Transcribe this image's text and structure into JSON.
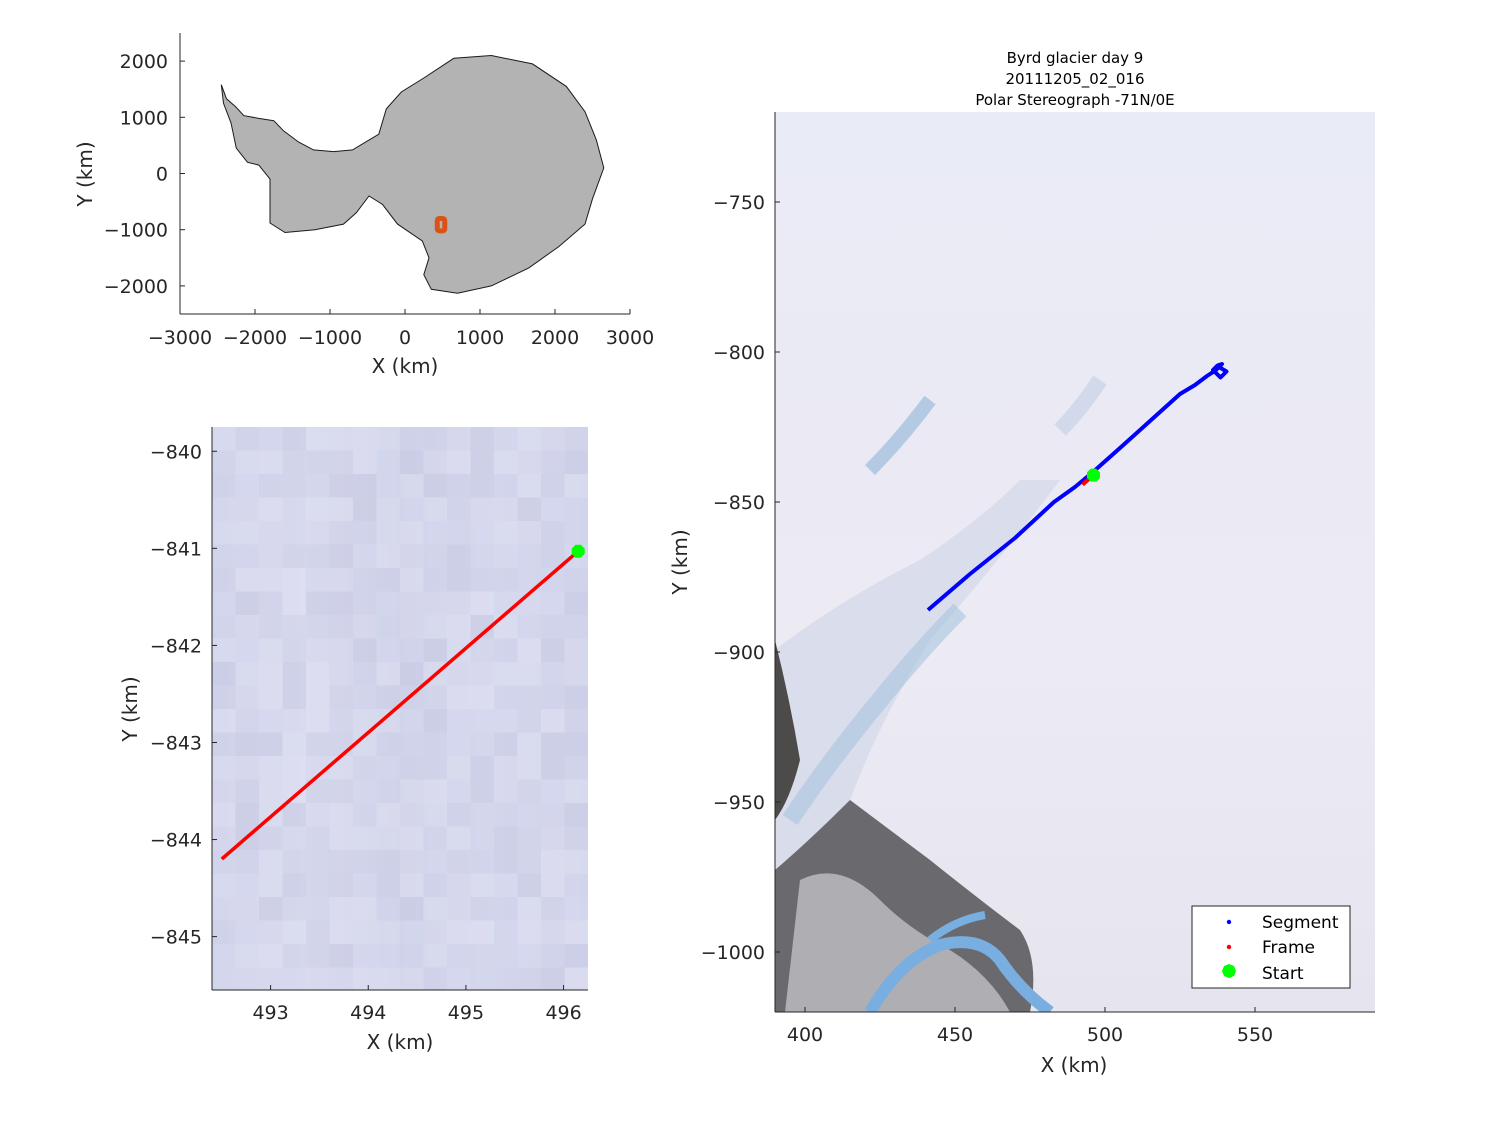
{
  "chart_data": [
    {
      "id": "overview",
      "type": "map",
      "title": "",
      "xlabel": "X (km)",
      "ylabel": "Y (km)",
      "xlim": [
        -3000,
        3000
      ],
      "ylim": [
        -2500,
        2500
      ],
      "xticks": [
        -3000,
        -2000,
        -1000,
        0,
        1000,
        2000,
        3000
      ],
      "yticks": [
        -2000,
        -1000,
        0,
        1000,
        2000
      ],
      "xtick_labels": [
        "−3000",
        "−2000",
        "−1000",
        "0",
        "1000",
        "2000",
        "3000"
      ],
      "ytick_labels": [
        "−2000",
        "−1000",
        "0",
        "1000",
        "2000"
      ],
      "land_color": "#b3b3b3",
      "box_color": "#d95319",
      "box": {
        "x": [
          430,
          530
        ],
        "y": [
          -1020,
          -800
        ]
      },
      "outline": [
        [
          -2450,
          1580
        ],
        [
          -2380,
          1330
        ],
        [
          -2260,
          1190
        ],
        [
          -2150,
          1030
        ],
        [
          -1950,
          980
        ],
        [
          -1750,
          940
        ],
        [
          -1620,
          760
        ],
        [
          -1420,
          560
        ],
        [
          -1220,
          420
        ],
        [
          -950,
          390
        ],
        [
          -700,
          420
        ],
        [
          -350,
          700
        ],
        [
          -250,
          1150
        ],
        [
          -50,
          1450
        ],
        [
          250,
          1700
        ],
        [
          650,
          2050
        ],
        [
          1150,
          2100
        ],
        [
          1700,
          1950
        ],
        [
          2150,
          1550
        ],
        [
          2400,
          1100
        ],
        [
          2550,
          600
        ],
        [
          2650,
          100
        ],
        [
          2500,
          -450
        ],
        [
          2400,
          -900
        ],
        [
          2050,
          -1300
        ],
        [
          1650,
          -1680
        ],
        [
          1150,
          -2000
        ],
        [
          700,
          -2130
        ],
        [
          350,
          -2060
        ],
        [
          250,
          -1800
        ],
        [
          320,
          -1500
        ],
        [
          230,
          -1200
        ],
        [
          -100,
          -900
        ],
        [
          -300,
          -550
        ],
        [
          -480,
          -400
        ],
        [
          -650,
          -700
        ],
        [
          -820,
          -900
        ],
        [
          -1200,
          -1000
        ],
        [
          -1600,
          -1050
        ],
        [
          -1800,
          -880
        ],
        [
          -1800,
          -500
        ],
        [
          -1800,
          -100
        ],
        [
          -1950,
          150
        ],
        [
          -2100,
          200
        ],
        [
          -2250,
          450
        ],
        [
          -2320,
          900
        ],
        [
          -2420,
          1250
        ]
      ]
    },
    {
      "id": "frame",
      "type": "line",
      "title": "",
      "xlabel": "X (km)",
      "ylabel": "Y (km)",
      "xlim": [
        492.4,
        496.25
      ],
      "ylim": [
        -845.55,
        -839.75
      ],
      "xticks": [
        493,
        494,
        495,
        496
      ],
      "yticks": [
        -840,
        -841,
        -842,
        -843,
        -844,
        -845
      ],
      "xtick_labels": [
        "493",
        "494",
        "495",
        "496"
      ],
      "ytick_labels": [
        "−840",
        "−841",
        "−842",
        "−843",
        "−844",
        "−845"
      ],
      "series": [
        {
          "color": "#ff0000",
          "x": [
            492.5,
            496.15
          ],
          "y": [
            -844.2,
            -841.03
          ]
        }
      ],
      "start_marker": {
        "x": 496.15,
        "y": -841.03,
        "color": "#00ff00"
      }
    },
    {
      "id": "segment",
      "type": "line",
      "title": [
        "Byrd glacier day 9",
        "20111205_02_016",
        "Polar Stereograph -71N/0E"
      ],
      "xlabel": "X (km)",
      "ylabel": "Y (km)",
      "xlim": [
        390,
        590
      ],
      "ylim": [
        -1020,
        -720
      ],
      "xticks": [
        400,
        450,
        500,
        550
      ],
      "yticks": [
        -750,
        -800,
        -850,
        -900,
        -950,
        -1000
      ],
      "xtick_labels": [
        "400",
        "450",
        "500",
        "550"
      ],
      "ytick_labels": [
        "−750",
        "−800",
        "−850",
        "−900",
        "−950",
        "−1000"
      ],
      "series": [
        {
          "name": "Segment",
          "color": "#0000ff",
          "x": [
            441,
            455,
            470,
            483,
            490,
            496,
            505,
            515,
            525,
            530,
            534,
            537,
            539,
            537.5,
            536,
            538.5,
            540.5,
            538
          ],
          "y": [
            -886,
            -874,
            -862,
            -850,
            -845,
            -840,
            -832,
            -823,
            -814,
            -811,
            -808,
            -806,
            -804,
            -804.5,
            -806,
            -808.5,
            -806.5,
            -805
          ]
        },
        {
          "name": "Frame",
          "color": "#ff0000",
          "x": [
            492.5,
            496.15
          ],
          "y": [
            -844.2,
            -841.03
          ]
        }
      ],
      "start_marker": {
        "name": "Start",
        "x": 496.15,
        "y": -841.03,
        "color": "#00ff00"
      },
      "legend": {
        "position": "bottom-right",
        "entries": [
          {
            "label": "Segment",
            "color": "#0000ff"
          },
          {
            "label": "Frame",
            "color": "#ff0000"
          },
          {
            "label": "Start",
            "color": "#00ff00"
          }
        ]
      }
    }
  ]
}
